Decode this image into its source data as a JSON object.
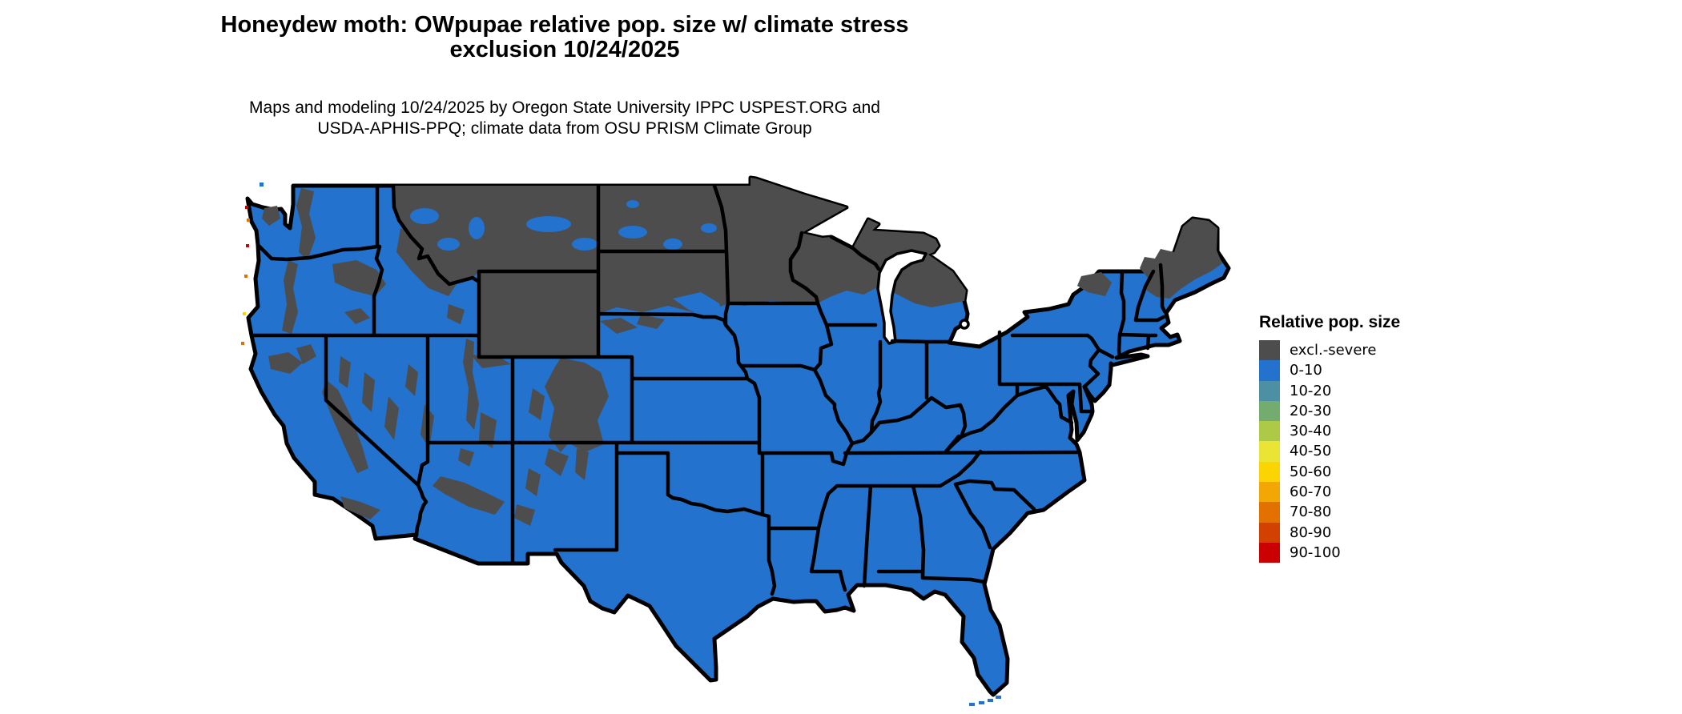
{
  "title": {
    "line1": "Honeydew moth: OWpupae relative pop. size w/ climate stress",
    "line2": "exclusion 10/24/2025"
  },
  "subtitle": {
    "line1": "Maps and modeling 10/24/2025 by Oregon State University IPPC USPEST.ORG and",
    "line2": "USDA-APHIS-PPQ; climate data from OSU PRISM Climate Group"
  },
  "map": {
    "region": "Conterminous United States",
    "date_shown": "10/24/2025",
    "dominant_class": "0-10",
    "excluded_class": "excl.-severe",
    "colors": {
      "land_0_10": "#2272CE",
      "exclusion_gray": "#4D4D4D",
      "water_background": "#FFFFFF",
      "state_border": "#000000",
      "coastal_hotspot_red": "#CB0000",
      "coastal_hotspot_orange": "#E27100",
      "coastal_hotspot_yellow": "#FBD501"
    }
  },
  "legend": {
    "title": "Relative pop. size",
    "items": [
      {
        "label": "excl.-severe",
        "color": "#4D4D4D"
      },
      {
        "label": "0-10",
        "color": "#2272CE"
      },
      {
        "label": "10-20",
        "color": "#4D90A4"
      },
      {
        "label": "20-30",
        "color": "#74AC70"
      },
      {
        "label": "30-40",
        "color": "#ADC945"
      },
      {
        "label": "40-50",
        "color": "#EAE435"
      },
      {
        "label": "50-60",
        "color": "#FBD501"
      },
      {
        "label": "60-70",
        "color": "#F2A705"
      },
      {
        "label": "70-80",
        "color": "#E27100"
      },
      {
        "label": "80-90",
        "color": "#D34100"
      },
      {
        "label": "90-100",
        "color": "#CB0000"
      }
    ]
  }
}
